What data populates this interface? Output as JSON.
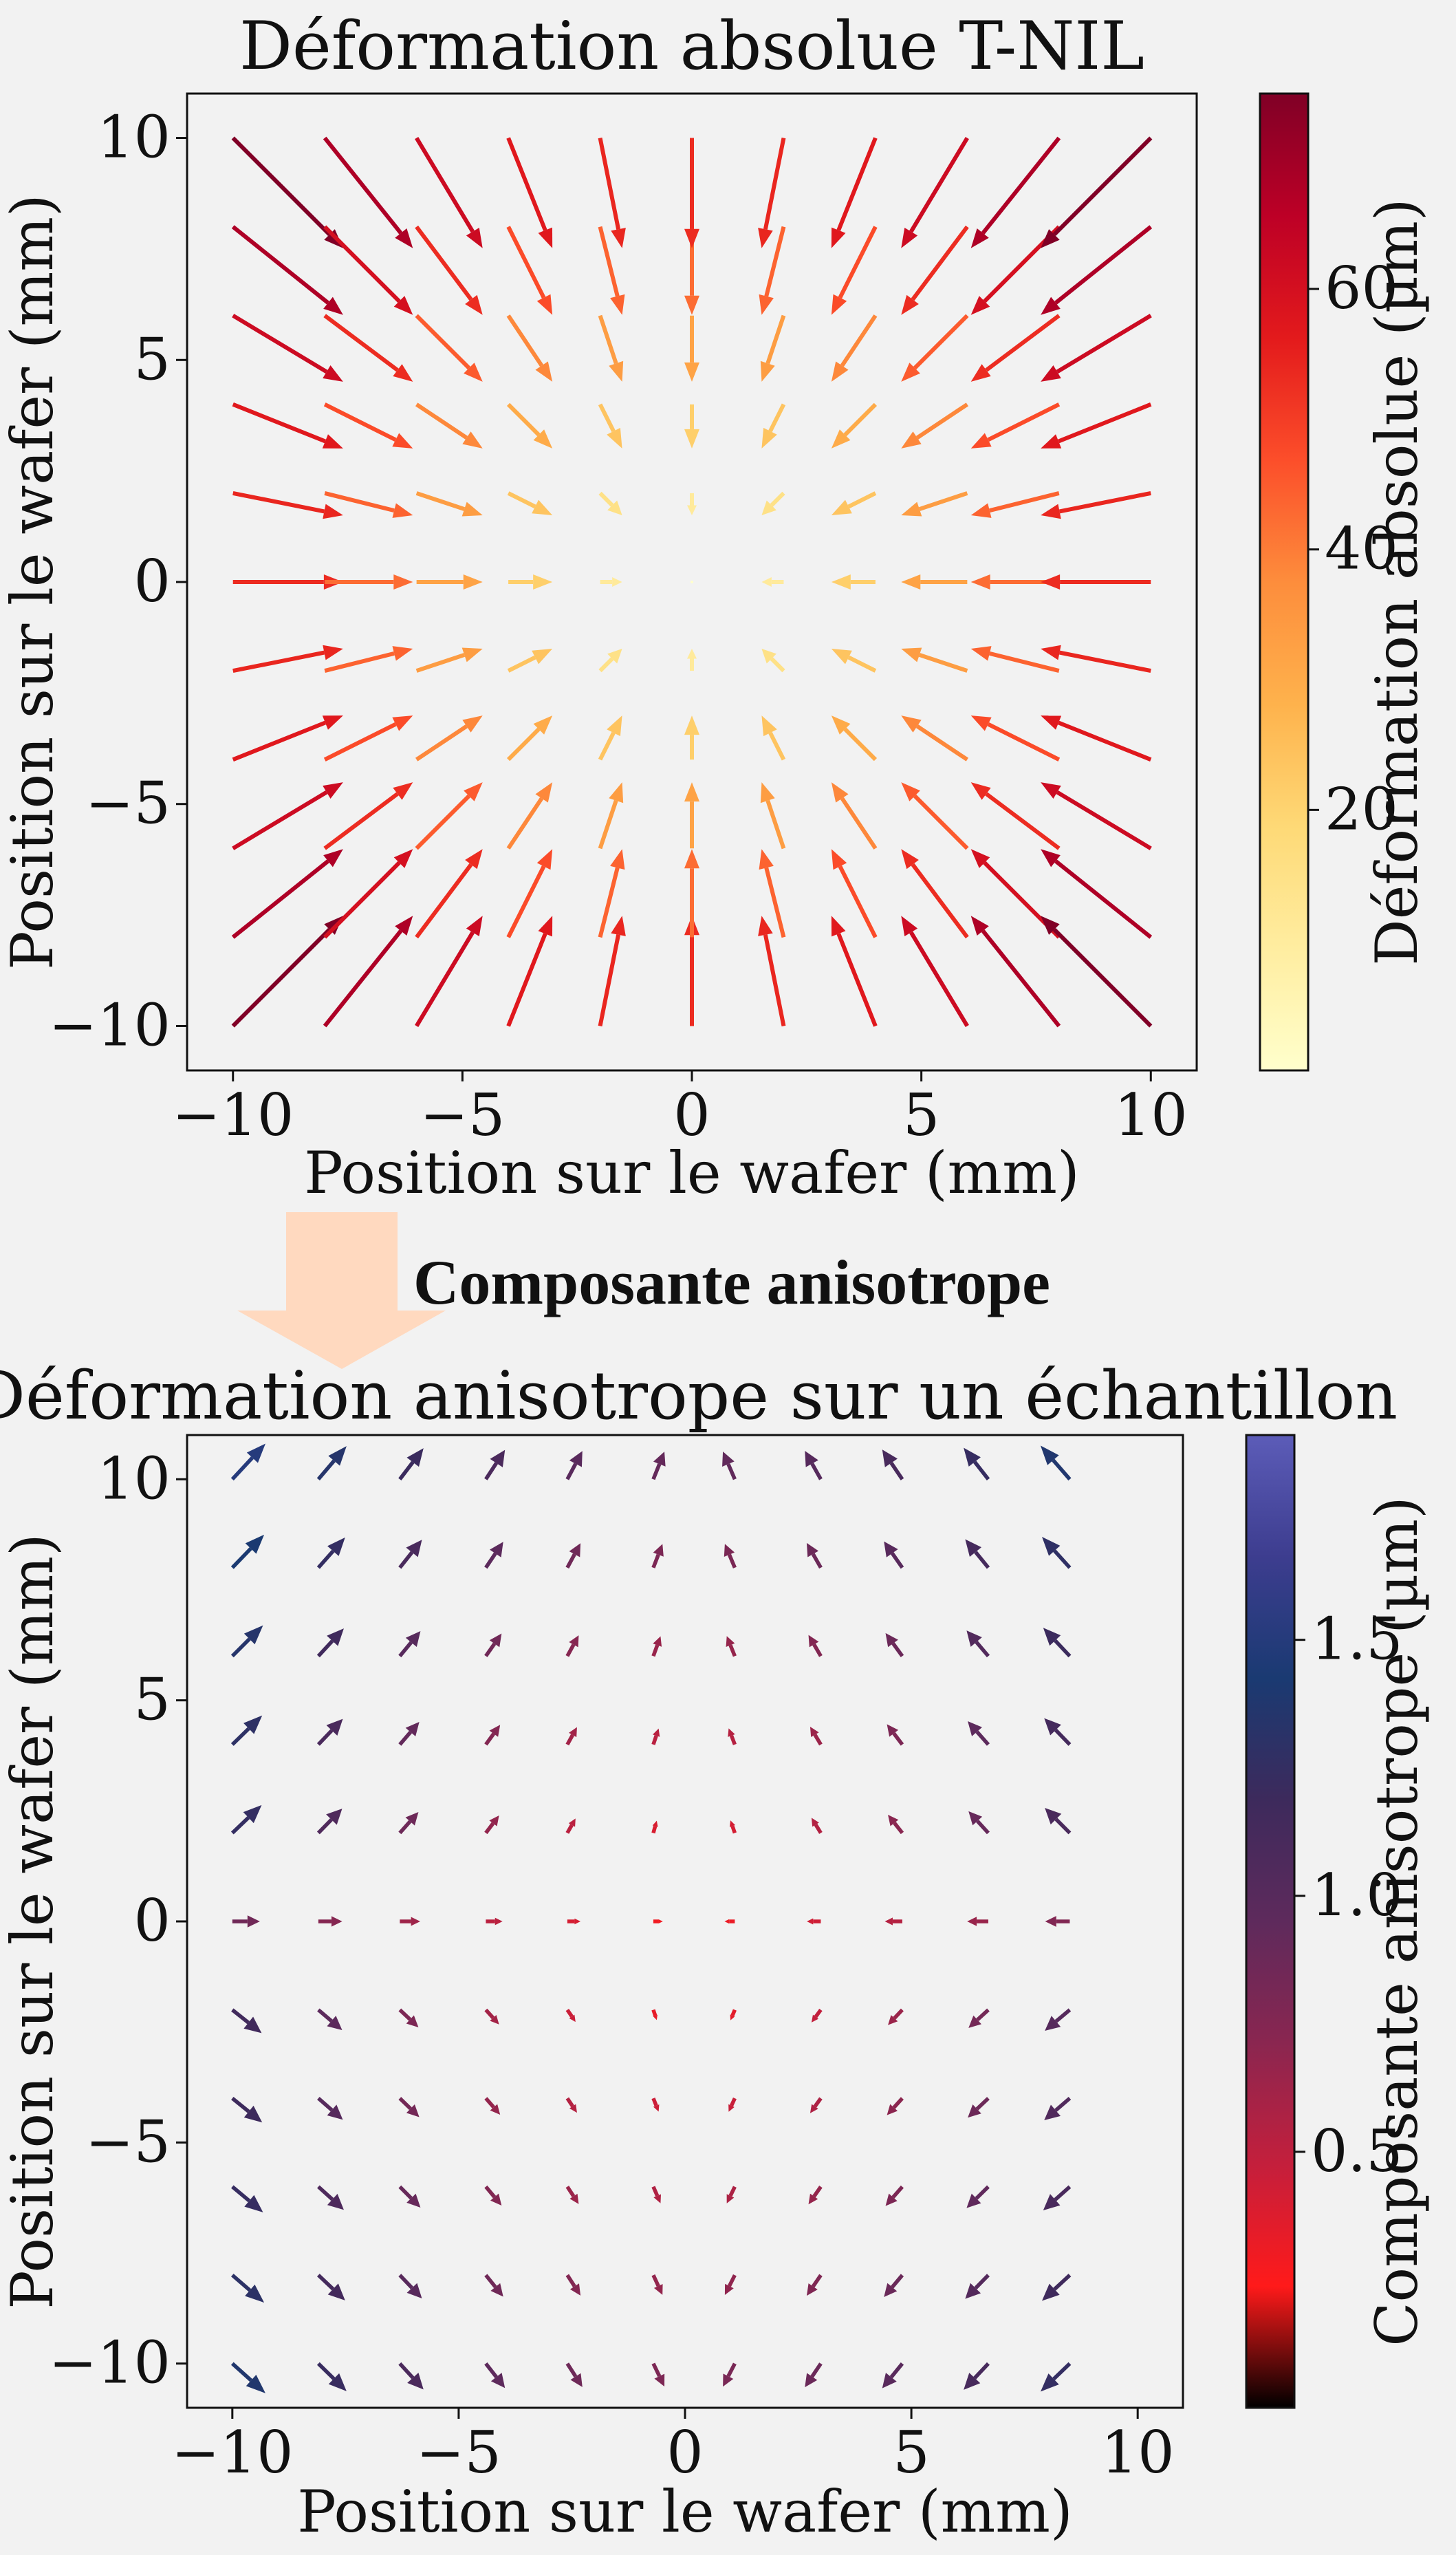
{
  "chart_data": [
    {
      "type": "quiver",
      "title": "Déformation absolue T-NIL",
      "xlabel": "Position sur le wafer (mm)",
      "ylabel": "Position sur le wafer (mm)",
      "xlim": [
        -11,
        11
      ],
      "ylim": [
        -11,
        11
      ],
      "xticks": [
        -10,
        -5,
        0,
        5,
        10
      ],
      "yticks": [
        -10,
        -5,
        0,
        5,
        10
      ],
      "xtick_labels": [
        "−10",
        "−5",
        "0",
        "5",
        "10"
      ],
      "ytick_labels": [
        "−10",
        "−5",
        "0",
        "5",
        "10"
      ],
      "grid_x": [
        -10,
        -8,
        -6,
        -4,
        -2,
        0,
        2,
        4,
        6,
        8,
        10
      ],
      "grid_y": [
        -10,
        -8,
        -6,
        -4,
        -2,
        0,
        2,
        4,
        6,
        8,
        10
      ],
      "field": "radial inward, vector = -k*(x,y), magnitude grows with distance from center",
      "colorbar": {
        "label": "Déformation absolue (µm)",
        "colormap": "YlOrRd",
        "range": [
          0,
          75
        ],
        "ticks": [
          20,
          40,
          60
        ],
        "tick_labels": [
          "20",
          "40",
          "60"
        ],
        "colors": [
          "#ffffcc",
          "#ffeda0",
          "#fed976",
          "#feb24c",
          "#fd8d3c",
          "#fc4e2a",
          "#e31a1c",
          "#bd0026",
          "#800026"
        ]
      }
    },
    {
      "type": "quiver",
      "title": "Déformation anisotrope sur un échantillon",
      "xlabel": "Position sur le wafer (mm)",
      "ylabel": "Position sur le wafer (mm)",
      "xlim": [
        -11,
        11
      ],
      "ylim": [
        -11,
        11
      ],
      "xticks": [
        -10,
        -5,
        0,
        5,
        10
      ],
      "yticks": [
        -10,
        -5,
        0,
        5,
        10
      ],
      "xtick_labels": [
        "−10",
        "−5",
        "0",
        "5",
        "10"
      ],
      "ytick_labels": [
        "−10",
        "−5",
        "0",
        "5",
        "10"
      ],
      "grid_x": [
        -10,
        -8.1,
        -6.3,
        -4.4,
        -2.6,
        -0.7,
        1.1,
        3.0,
        4.8,
        6.7,
        8.5
      ],
      "grid_y": [
        -10,
        -8,
        -6,
        -4,
        -2,
        0,
        2,
        4,
        6,
        8,
        10
      ],
      "colorbar": {
        "label": "Composante anisotrope (µm)",
        "colormap": "black-red-purple-blue",
        "range": [
          0,
          1.9
        ],
        "ticks": [
          0.5,
          1.0,
          1.5
        ],
        "tick_labels": [
          "0.5",
          "1.0",
          "1.5"
        ],
        "colors": [
          "#000000",
          "#ff1a1a",
          "#c41f3c",
          "#8a2650",
          "#5e2a5c",
          "#3d2a5c",
          "#1a3a72",
          "#3d3d8f",
          "#5c5cb8"
        ]
      }
    }
  ],
  "annotation": {
    "label": "Composante anisotrope",
    "arrow_color": "#ffd9bf"
  }
}
